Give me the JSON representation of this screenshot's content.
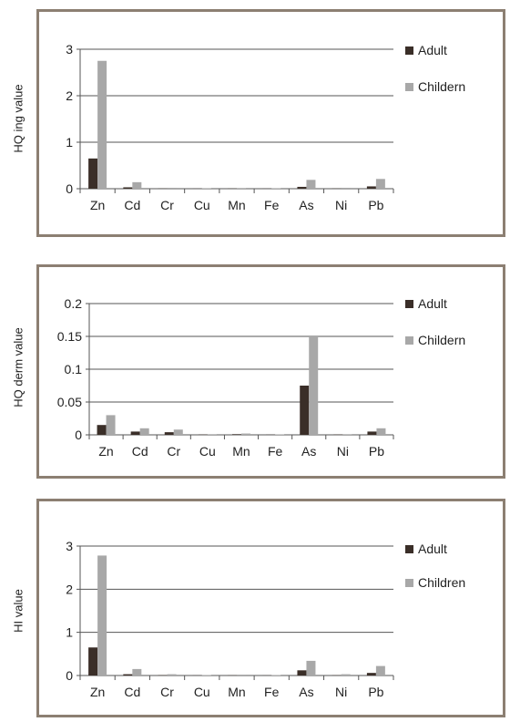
{
  "colors": {
    "adult": "#3a2e28",
    "children": "#a8a8a8",
    "frame": "#8c7f72",
    "grid": "#555555"
  },
  "chart_data": [
    {
      "type": "bar",
      "ylabel": "HQ ing value",
      "categories": [
        "Zn",
        "Cd",
        "Cr",
        "Cu",
        "Mn",
        "Fe",
        "As",
        "Ni",
        "Pb"
      ],
      "yticks": [
        "0",
        "1",
        "2",
        "3"
      ],
      "ylim": [
        0,
        3
      ],
      "grid": true,
      "legend_position": "right",
      "series": [
        {
          "name": "Adult",
          "values": [
            0.65,
            0.03,
            0.005,
            0.002,
            0.004,
            0.002,
            0.04,
            0.005,
            0.05
          ]
        },
        {
          "name": "Childern",
          "values": [
            2.75,
            0.14,
            0.02,
            0.008,
            0.015,
            0.008,
            0.19,
            0.02,
            0.21
          ]
        }
      ]
    },
    {
      "type": "bar",
      "ylabel": "HQ derm value",
      "categories": [
        "Zn",
        "Cd",
        "Cr",
        "Cu",
        "Mn",
        "Fe",
        "As",
        "Ni",
        "Pb"
      ],
      "yticks": [
        "0",
        "0.05",
        "0.1",
        "0.15",
        "0.2"
      ],
      "ylim": [
        0,
        0.2
      ],
      "grid": true,
      "legend_position": "right",
      "series": [
        {
          "name": "Adult",
          "values": [
            0.015,
            0.005,
            0.004,
            0.0005,
            0.001,
            0.0003,
            0.075,
            0.0005,
            0.005
          ]
        },
        {
          "name": "Childern",
          "values": [
            0.03,
            0.01,
            0.008,
            0.001,
            0.002,
            0.0006,
            0.15,
            0.001,
            0.01
          ]
        }
      ]
    },
    {
      "type": "bar",
      "ylabel": "HI value",
      "categories": [
        "Zn",
        "Cd",
        "Cr",
        "Cu",
        "Mn",
        "Fe",
        "As",
        "Ni",
        "Pb"
      ],
      "yticks": [
        "0",
        "1",
        "2",
        "3"
      ],
      "ylim": [
        0,
        3
      ],
      "grid": true,
      "legend_position": "right",
      "series": [
        {
          "name": "Adult",
          "values": [
            0.65,
            0.03,
            0.01,
            0.003,
            0.005,
            0.002,
            0.12,
            0.006,
            0.06
          ]
        },
        {
          "name": "Children",
          "values": [
            2.78,
            0.15,
            0.03,
            0.01,
            0.02,
            0.01,
            0.34,
            0.03,
            0.22
          ]
        }
      ]
    }
  ]
}
